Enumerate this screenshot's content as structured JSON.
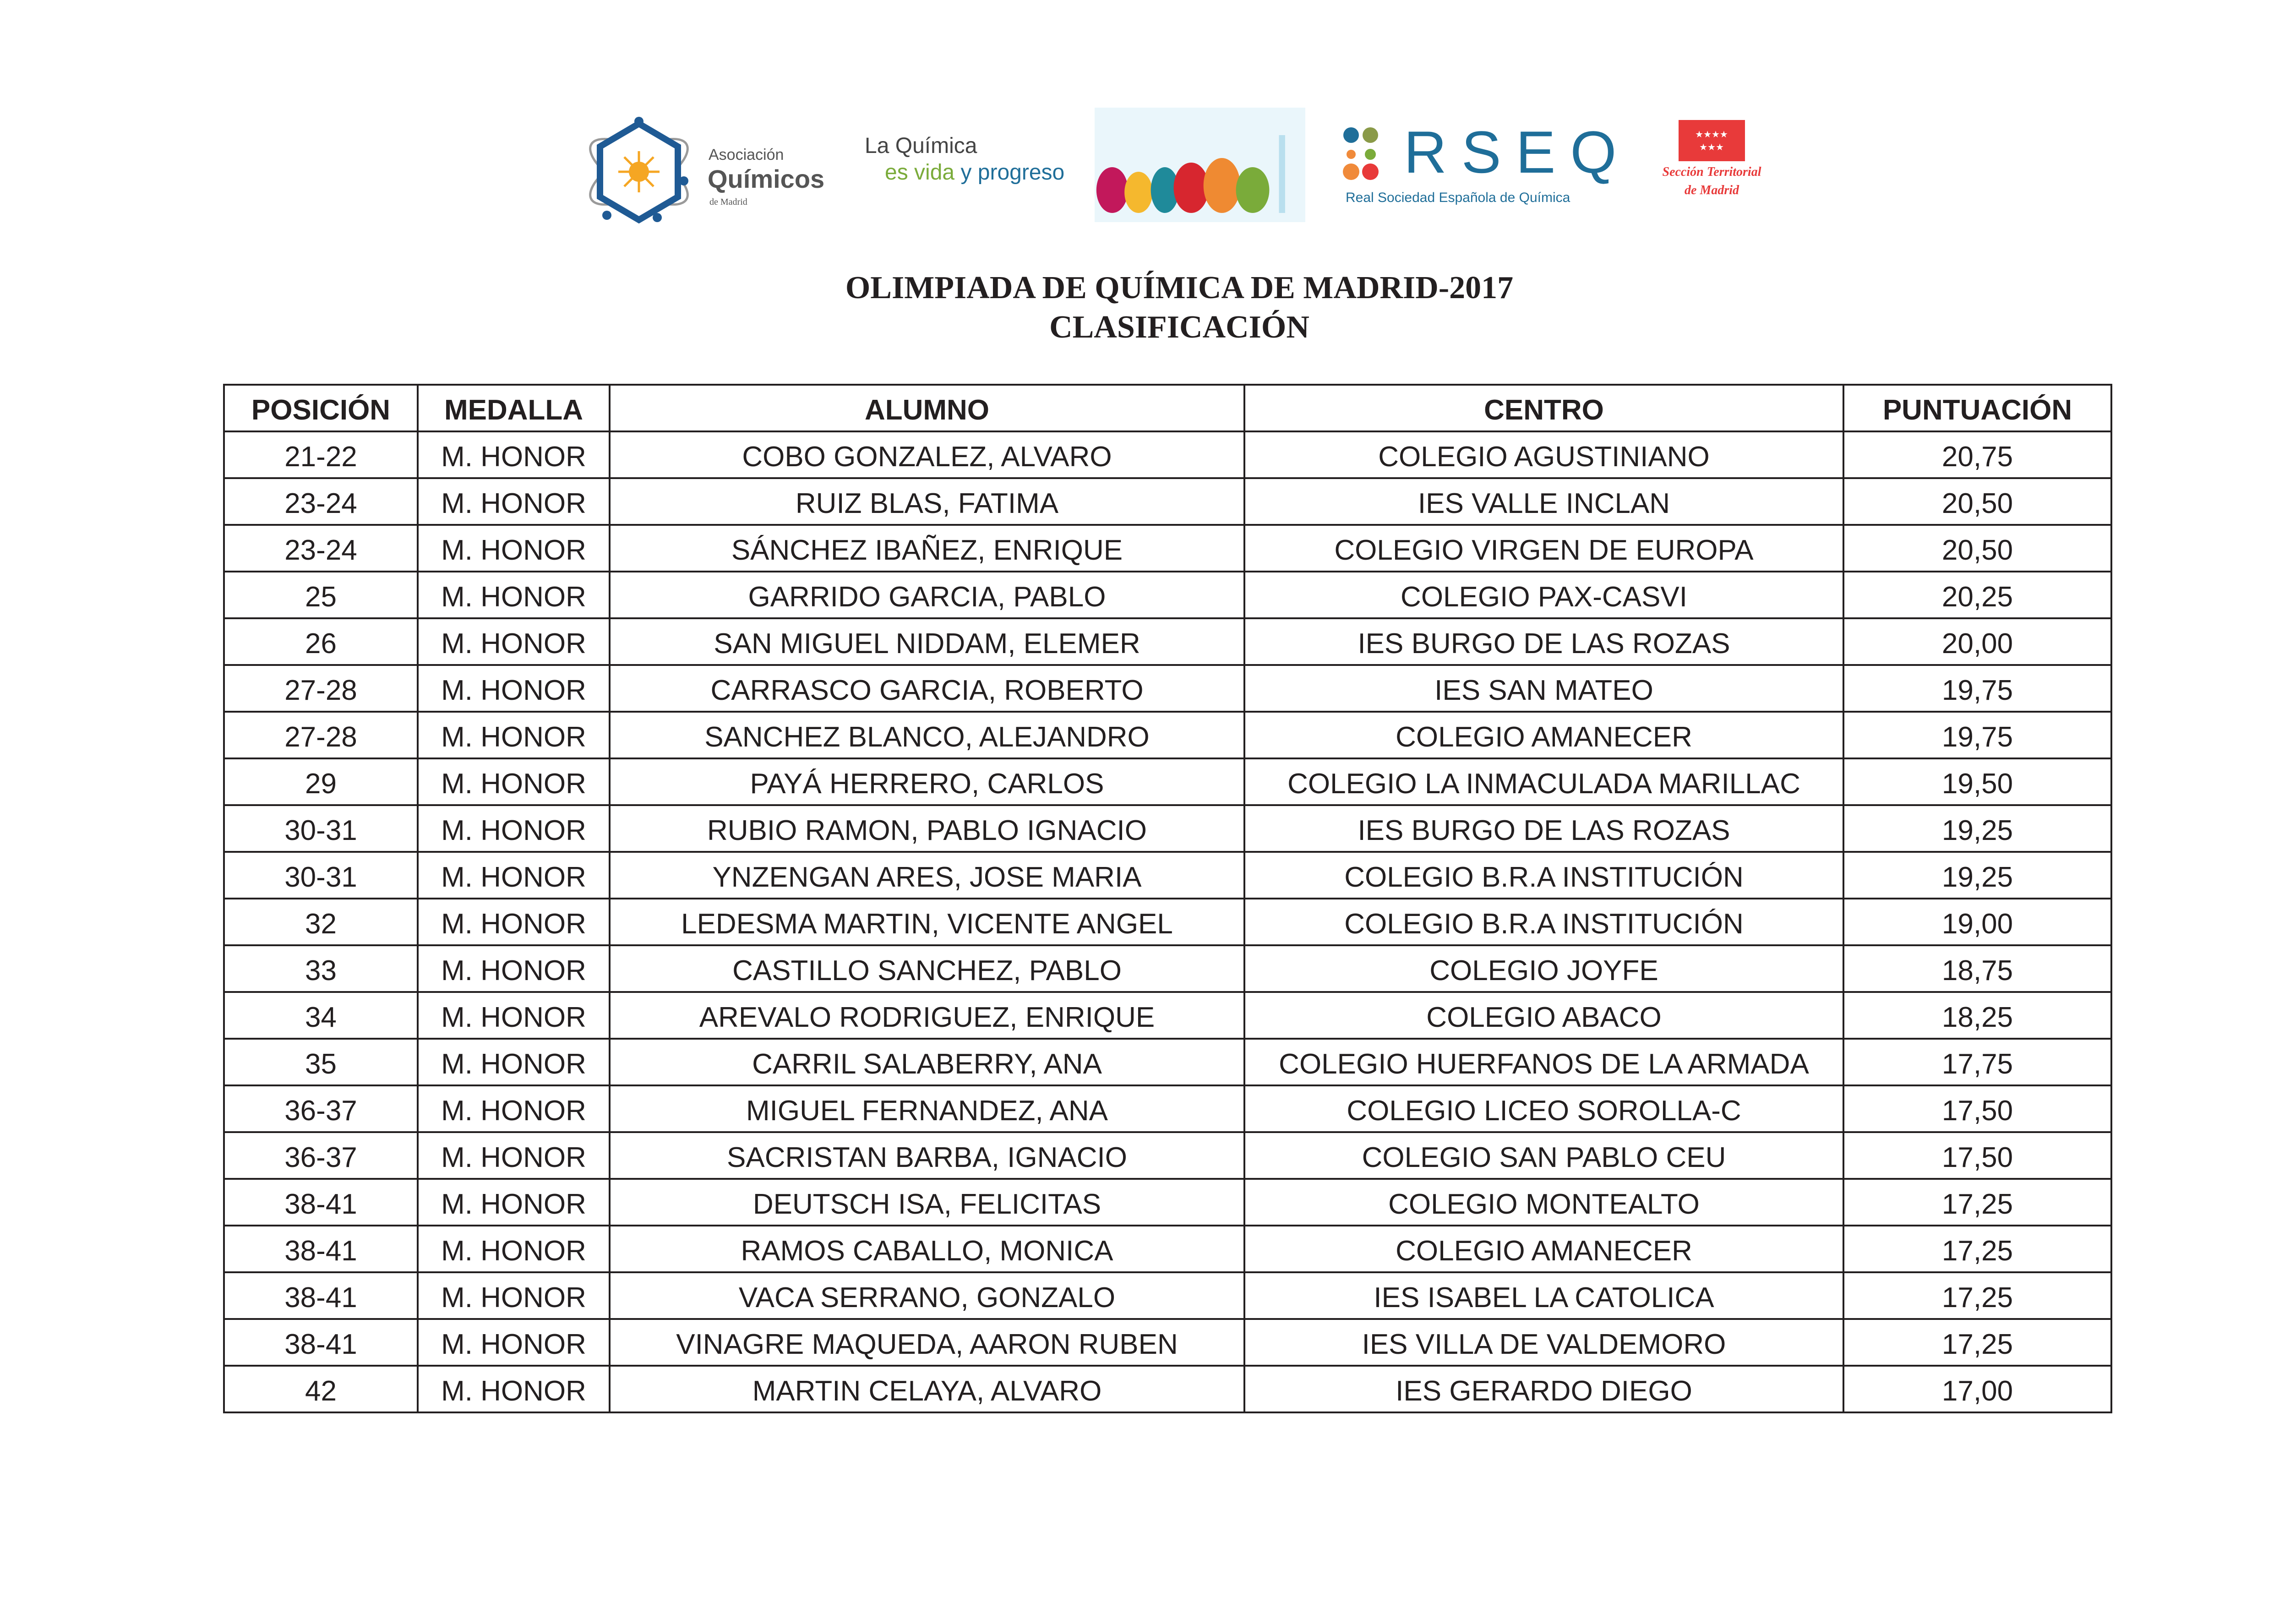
{
  "logos": {
    "aqm": {
      "line1": "Asociación",
      "line2": "Químicos",
      "line3": "de Madrid"
    },
    "quimica": {
      "line1": "La Química",
      "line2a": "es vida",
      "line2b": "y progreso"
    },
    "rseq": {
      "letters": "RSEQ",
      "subtitle": "Real Sociedad Española de Química"
    },
    "madrid": {
      "line1": "Sección Territorial",
      "line2": "de Madrid"
    }
  },
  "colors": {
    "text": "#231f20",
    "aqm_blue": "#1f5a94",
    "green": "#7aab3a",
    "rseq_blue": "#1f6e99",
    "madrid_red": "#e83a3a"
  },
  "document": {
    "title": "OLIMPIADA DE QUÍMICA DE MADRID-2017",
    "subtitle": "CLASIFICACIÓN"
  },
  "table": {
    "headers": [
      "POSICIÓN",
      "MEDALLA",
      "ALUMNO",
      "CENTRO",
      "PUNTUACIÓN"
    ],
    "rows": [
      [
        "21-22",
        "M. HONOR",
        "COBO GONZALEZ, ALVARO",
        "COLEGIO AGUSTINIANO",
        "20,75"
      ],
      [
        "23-24",
        "M. HONOR",
        "RUIZ BLAS, FATIMA",
        "IES VALLE INCLAN",
        "20,50"
      ],
      [
        "23-24",
        "M. HONOR",
        "SÁNCHEZ IBAÑEZ, ENRIQUE",
        "COLEGIO VIRGEN DE EUROPA",
        "20,50"
      ],
      [
        "25",
        "M. HONOR",
        "GARRIDO GARCIA, PABLO",
        "COLEGIO PAX-CASVI",
        "20,25"
      ],
      [
        "26",
        "M. HONOR",
        "SAN MIGUEL NIDDAM, ELEMER",
        "IES BURGO DE LAS ROZAS",
        "20,00"
      ],
      [
        "27-28",
        "M. HONOR",
        "CARRASCO GARCIA, ROBERTO",
        "IES SAN MATEO",
        "19,75"
      ],
      [
        "27-28",
        "M. HONOR",
        "SANCHEZ BLANCO, ALEJANDRO",
        "COLEGIO AMANECER",
        "19,75"
      ],
      [
        "29",
        "M. HONOR",
        "PAYÁ HERRERO, CARLOS",
        "COLEGIO LA INMACULADA MARILLAC",
        "19,50"
      ],
      [
        "30-31",
        "M. HONOR",
        "RUBIO RAMON, PABLO IGNACIO",
        "IES BURGO DE LAS ROZAS",
        "19,25"
      ],
      [
        "30-31",
        "M. HONOR",
        "YNZENGAN ARES, JOSE MARIA",
        "COLEGIO B.R.A INSTITUCIÓN",
        "19,25"
      ],
      [
        "32",
        "M. HONOR",
        "LEDESMA MARTIN, VICENTE ANGEL",
        "COLEGIO B.R.A INSTITUCIÓN",
        "19,00"
      ],
      [
        "33",
        "M. HONOR",
        "CASTILLO SANCHEZ, PABLO",
        "COLEGIO JOYFE",
        "18,75"
      ],
      [
        "34",
        "M. HONOR",
        "AREVALO RODRIGUEZ, ENRIQUE",
        "COLEGIO ABACO",
        "18,25"
      ],
      [
        "35",
        "M. HONOR",
        "CARRIL SALABERRY, ANA",
        "COLEGIO HUERFANOS DE LA ARMADA",
        "17,75"
      ],
      [
        "36-37",
        "M. HONOR",
        "MIGUEL FERNANDEZ, ANA",
        "COLEGIO LICEO SOROLLA-C",
        "17,50"
      ],
      [
        "36-37",
        "M. HONOR",
        "SACRISTAN BARBA, IGNACIO",
        "COLEGIO SAN PABLO CEU",
        "17,50"
      ],
      [
        "38-41",
        "M. HONOR",
        "DEUTSCH ISA, FELICITAS",
        "COLEGIO MONTEALTO",
        "17,25"
      ],
      [
        "38-41",
        "M. HONOR",
        "RAMOS CABALLO, MONICA",
        "COLEGIO AMANECER",
        "17,25"
      ],
      [
        "38-41",
        "M. HONOR",
        "VACA SERRANO, GONZALO",
        "IES ISABEL LA CATOLICA",
        "17,25"
      ],
      [
        "38-41",
        "M. HONOR",
        "VINAGRE MAQUEDA, AARON RUBEN",
        "IES VILLA DE VALDEMORO",
        "17,25"
      ],
      [
        "42",
        "M. HONOR",
        "MARTIN CELAYA, ALVARO",
        "IES GERARDO DIEGO",
        "17,00"
      ]
    ]
  }
}
